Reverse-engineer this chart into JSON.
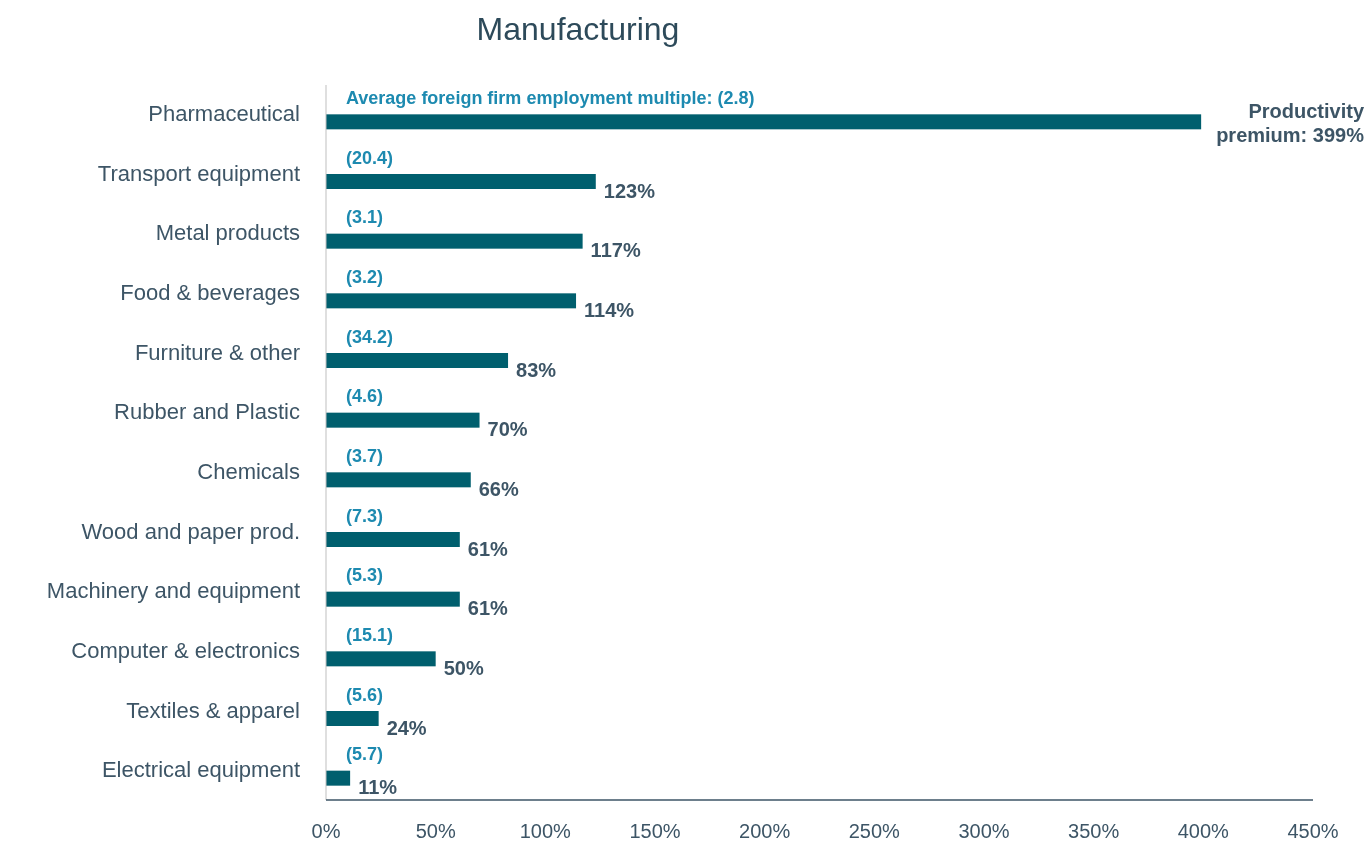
{
  "chart_data": {
    "type": "bar",
    "orientation": "horizontal",
    "title": "Manufacturing",
    "categories": [
      "Pharmaceutical",
      "Transport equipment",
      "Metal products",
      "Food & beverages",
      "Furniture & other",
      "Rubber and Plastic",
      "Chemicals",
      "Wood and paper prod.",
      "Machinery and equipment",
      "Computer & electronics",
      "Textiles & apparel",
      "Electrical equipment"
    ],
    "values": [
      399,
      123,
      117,
      114,
      83,
      70,
      66,
      61,
      61,
      50,
      24,
      11
    ],
    "value_labels": [
      "Productivity premium: 399%",
      "123%",
      "117%",
      "114%",
      "83%",
      "70%",
      "66%",
      "61%",
      "61%",
      "50%",
      "24%",
      "11%"
    ],
    "color": "#005f6e",
    "xlim": [
      0,
      450
    ],
    "xticks": [
      {
        "value": 0,
        "label": "0%"
      },
      {
        "value": 50,
        "label": "50%"
      },
      {
        "value": 100,
        "label": "100%"
      },
      {
        "value": 150,
        "label": "150%"
      },
      {
        "value": 200,
        "label": "200%"
      },
      {
        "value": 250,
        "label": "250%"
      },
      {
        "value": 300,
        "label": "300%"
      },
      {
        "value": 350,
        "label": "350%"
      },
      {
        "value": 400,
        "label": "400%"
      },
      {
        "value": 450,
        "label": "450%"
      }
    ],
    "annotations": [
      "Average foreign firm employment multiple: (2.8)",
      "(20.4)",
      "(3.1)",
      "(3.2)",
      "(34.2)",
      "(4.6)",
      "(3.7)",
      "(7.3)",
      "(5.3)",
      "(15.1)",
      "(5.6)",
      "(5.7)"
    ],
    "grid": false
  }
}
